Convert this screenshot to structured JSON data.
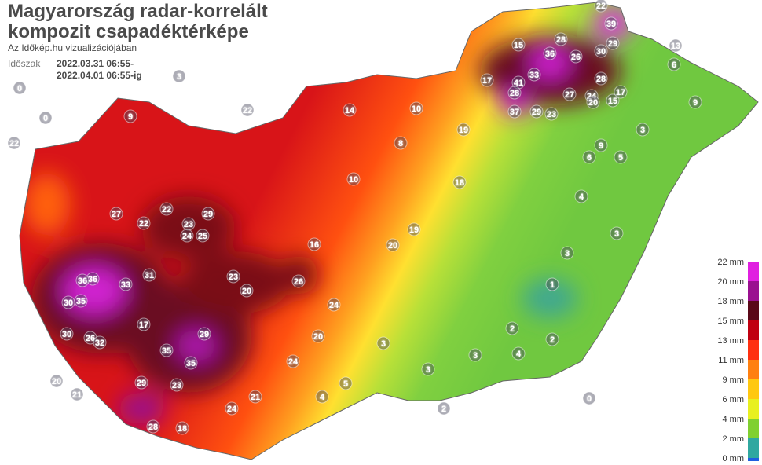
{
  "header": {
    "title_line1": "Magyarország radar-korrelált",
    "title_line2": "kompozit csapadéktérképe",
    "subtitle": "Az Időkép.hu vizualizációjában",
    "period_label": "Időszak",
    "period_from": "2022.03.31 06:55-",
    "period_to": "2022.04.01 06:55-ig"
  },
  "legend": {
    "labels": [
      "22 mm",
      "20 mm",
      "18 mm",
      "15 mm",
      "13 mm",
      "11 mm",
      "9 mm",
      "6 mm",
      "4 mm",
      "2 mm",
      "0 mm"
    ],
    "colors": [
      "#e020e0",
      "#9a1090",
      "#5a0818",
      "#c00010",
      "#ff3010",
      "#ff8010",
      "#ffc810",
      "#e8f020",
      "#80d030",
      "#30a8a0",
      "#2060e0"
    ]
  },
  "stations": [
    22,
    39,
    29,
    30,
    36,
    26,
    28,
    33,
    41,
    28,
    37,
    29,
    23,
    27,
    24,
    20,
    15,
    28,
    17,
    13,
    6,
    9,
    3,
    9,
    6,
    5,
    4,
    3,
    3,
    1,
    2,
    2,
    4,
    3,
    3,
    3,
    5,
    4,
    26,
    20,
    23,
    29,
    23,
    24,
    25,
    31,
    33,
    36,
    36,
    35,
    30,
    30,
    26,
    32,
    17,
    35,
    35,
    23,
    29,
    29,
    27,
    22,
    22,
    19,
    20,
    18,
    19,
    10,
    8,
    17,
    15,
    14,
    10,
    16,
    24,
    20,
    24,
    21,
    24,
    18,
    28,
    20,
    21,
    22,
    9,
    22,
    3,
    0,
    0,
    2,
    0
  ]
}
